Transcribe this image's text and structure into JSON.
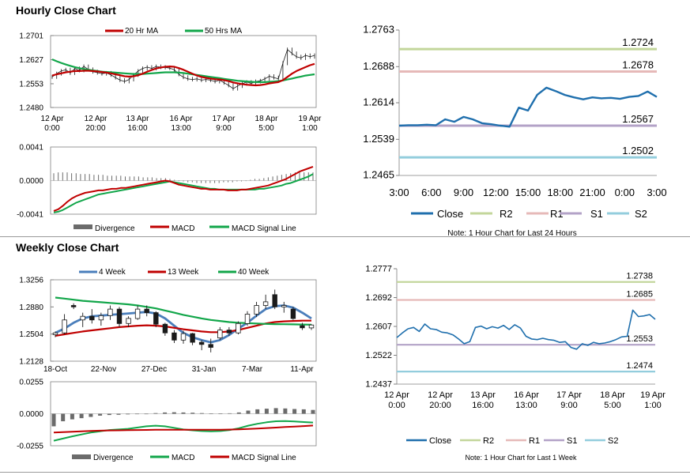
{
  "colors": {
    "ma20": "#c00000",
    "ma50": "#12a64a",
    "ma4": "#4a7ebb",
    "ma13": "#c00000",
    "ma40": "#12a64a",
    "close": "#1f6fad",
    "r2": "#c3d69b",
    "r1": "#e6b9b8",
    "s1": "#b3a2c7",
    "s2": "#93cddd",
    "divergence": "#6b6b6b",
    "macd_red": "#c00000",
    "signal_green": "#12a64a"
  },
  "hourly": {
    "title": "Hourly Close Chart",
    "price": {
      "type": "line",
      "legend": [
        "20 Hr MA",
        "50 Hrs MA"
      ],
      "y_ticks": [
        "1.2701",
        "1.2627",
        "1.2553",
        "1.2480"
      ],
      "y_ticks_num": [
        1.2701,
        1.2627,
        1.2553,
        1.248
      ],
      "ylim": [
        1.248,
        1.2701
      ],
      "x_ticks": [
        {
          "line1": "12 Apr",
          "line2": "0:00"
        },
        {
          "line1": "12 Apr",
          "line2": "20:00"
        },
        {
          "line1": "13 Apr",
          "line2": "16:00"
        },
        {
          "line1": "16 Apr",
          "line2": "13:00"
        },
        {
          "line1": "17 Apr",
          "line2": "9:00"
        },
        {
          "line1": "18 Apr",
          "line2": "5:00"
        },
        {
          "line1": "19 Apr",
          "line2": "1:00"
        }
      ],
      "series": [
        {
          "name": "Price",
          "values": [
            1.2574,
            1.2584,
            1.2592,
            1.2596,
            1.2586,
            1.26,
            1.2594,
            1.2606,
            1.2597,
            1.259,
            1.2587,
            1.2584,
            1.2586,
            1.258,
            1.2572,
            1.2564,
            1.256,
            1.2566,
            1.258,
            1.2592,
            1.26,
            1.2604,
            1.26,
            1.2606,
            1.2604,
            1.2603,
            1.2601,
            1.2596,
            1.2582,
            1.2573,
            1.2568,
            1.2566,
            1.2568,
            1.2564,
            1.2566,
            1.2564,
            1.256,
            1.2564,
            1.2556,
            1.2548,
            1.2538,
            1.2546,
            1.2553,
            1.2558,
            1.2554,
            1.256,
            1.2562,
            1.2568,
            1.2576,
            1.2572,
            1.2568,
            1.2616,
            1.2658,
            1.2646,
            1.2636,
            1.2632,
            1.264,
            1.2636,
            1.264
          ]
        },
        {
          "name": "20 Hr MA",
          "values": [
            1.2578,
            1.2582,
            1.2585,
            1.2588,
            1.259,
            1.2592,
            1.2592,
            1.2593,
            1.2593,
            1.2592,
            1.2591,
            1.2589,
            1.2587,
            1.2585,
            1.2582,
            1.2579,
            1.2576,
            1.2575,
            1.2576,
            1.2579,
            1.2584,
            1.259,
            1.2595,
            1.26,
            1.2603,
            1.2605,
            1.2606,
            1.2605,
            1.2601,
            1.2596,
            1.259,
            1.2584,
            1.2578,
            1.2574,
            1.2571,
            1.2569,
            1.2567,
            1.2566,
            1.2564,
            1.2561,
            1.2557,
            1.2554,
            1.2552,
            1.255,
            1.2549,
            1.2548,
            1.2549,
            1.2551,
            1.2554,
            1.2556,
            1.2558,
            1.2564,
            1.2574,
            1.2584,
            1.2592,
            1.2598,
            1.2604,
            1.261,
            1.2614
          ]
        },
        {
          "name": "50 Hrs MA",
          "values": [
            1.2628,
            1.2622,
            1.2617,
            1.2612,
            1.2608,
            1.2604,
            1.2601,
            1.2598,
            1.2596,
            1.2594,
            1.2592,
            1.259,
            1.2589,
            1.2588,
            1.2587,
            1.2586,
            1.2585,
            1.2584,
            1.2583,
            1.2583,
            1.2583,
            1.2584,
            1.2585,
            1.2586,
            1.2587,
            1.2588,
            1.2588,
            1.2588,
            1.2587,
            1.2586,
            1.2584,
            1.2582,
            1.258,
            1.2578,
            1.2576,
            1.2574,
            1.2572,
            1.257,
            1.2568,
            1.2566,
            1.2564,
            1.2562,
            1.2561,
            1.256,
            1.2559,
            1.2558,
            1.2558,
            1.2558,
            1.2559,
            1.256,
            1.2561,
            1.2563,
            1.2566,
            1.2569,
            1.2572,
            1.2575,
            1.2578,
            1.258,
            1.2582
          ]
        }
      ]
    },
    "macd": {
      "type": "bar+line",
      "legend": [
        "Divergence",
        "MACD",
        "MACD Signal Line"
      ],
      "y_ticks": [
        "0.0041",
        "0.0000",
        "-0.0041"
      ],
      "y_ticks_num": [
        0.0041,
        0.0,
        -0.0041
      ],
      "ylim": [
        -0.0041,
        0.0041
      ],
      "divergence": [
        0.0009,
        0.001,
        0.001,
        0.001,
        0.0009,
        0.0009,
        0.0008,
        0.0008,
        0.0008,
        0.0007,
        0.0007,
        0.0007,
        0.0006,
        0.0006,
        0.0006,
        0.0006,
        0.0005,
        0.0005,
        0.0005,
        0.0005,
        0.0004,
        0.0004,
        0.0004,
        0.0003,
        0.0003,
        0.0003,
        0.0002,
        0.0001,
        0.0,
        -0.0001,
        -0.0002,
        -0.0002,
        -0.0003,
        -0.0003,
        -0.0003,
        -0.0003,
        -0.0003,
        -0.0003,
        -0.0002,
        -0.0002,
        -0.0002,
        -0.0001,
        -0.0001,
        0.0,
        0.0001,
        0.0002,
        0.0002,
        0.0003,
        0.0004,
        0.0005,
        0.0006,
        0.0007,
        0.0008,
        0.0009,
        0.001,
        0.001,
        0.001,
        0.001,
        0.001
      ],
      "macd": [
        -0.0037,
        -0.0035,
        -0.0031,
        -0.0026,
        -0.0022,
        -0.0019,
        -0.0017,
        -0.0015,
        -0.0014,
        -0.0013,
        -0.0012,
        -0.0012,
        -0.0011,
        -0.001,
        -0.001,
        -0.0009,
        -0.0009,
        -0.0008,
        -0.0007,
        -0.0006,
        -0.0005,
        -0.0004,
        -0.0003,
        -0.0002,
        -0.0001,
        0.0,
        -0.0001,
        -0.0003,
        -0.0005,
        -0.0006,
        -0.0007,
        -0.0008,
        -0.0009,
        -0.001,
        -0.001,
        -0.0011,
        -0.0011,
        -0.0011,
        -0.0011,
        -0.0012,
        -0.0012,
        -0.0012,
        -0.0011,
        -0.0011,
        -0.001,
        -0.0009,
        -0.0008,
        -0.0007,
        -0.0006,
        -0.0004,
        -0.0002,
        0.0,
        0.0002,
        0.0005,
        0.0008,
        0.0011,
        0.0013,
        0.0015,
        0.0017
      ],
      "signal": [
        -0.0039,
        -0.0038,
        -0.0036,
        -0.0033,
        -0.003,
        -0.0027,
        -0.0025,
        -0.0023,
        -0.0021,
        -0.0019,
        -0.0017,
        -0.0016,
        -0.0015,
        -0.0014,
        -0.0013,
        -0.0012,
        -0.0011,
        -0.001,
        -0.0009,
        -0.0008,
        -0.0007,
        -0.0006,
        -0.0005,
        -0.0004,
        -0.0003,
        -0.0002,
        -0.0001,
        -0.0002,
        -0.0003,
        -0.0004,
        -0.0005,
        -0.0006,
        -0.0007,
        -0.0008,
        -0.0009,
        -0.001,
        -0.001,
        -0.0011,
        -0.0011,
        -0.0011,
        -0.0011,
        -0.0011,
        -0.0011,
        -0.0011,
        -0.0011,
        -0.0011,
        -0.001,
        -0.001,
        -0.0009,
        -0.0008,
        -0.0007,
        -0.0006,
        -0.0004,
        -0.0003,
        -0.0001,
        0.0001,
        0.0003,
        0.0005,
        0.0008
      ]
    },
    "pivot": {
      "type": "line",
      "y_ticks": [
        "1.2763",
        "1.2688",
        "1.2614",
        "1.2539",
        "1.2465"
      ],
      "y_ticks_num": [
        1.2763,
        1.2688,
        1.2614,
        1.2539,
        1.2465
      ],
      "ylim": [
        1.2465,
        1.2763
      ],
      "x_ticks": [
        "3:00",
        "6:00",
        "9:00",
        "12:00",
        "15:00",
        "18:00",
        "21:00",
        "0:00",
        "3:00"
      ],
      "close": [
        1.2567,
        1.2568,
        1.2568,
        1.2569,
        1.2568,
        1.258,
        1.2575,
        1.2585,
        1.258,
        1.2572,
        1.257,
        1.2567,
        1.2565,
        1.2604,
        1.2598,
        1.263,
        1.2645,
        1.2638,
        1.263,
        1.2625,
        1.2621,
        1.2625,
        1.2623,
        1.2624,
        1.2622,
        1.2626,
        1.2628,
        1.2637,
        1.2626
      ],
      "levels": [
        {
          "name": "R2",
          "value": 1.2724,
          "label": "1.2724"
        },
        {
          "name": "R1",
          "value": 1.2678,
          "label": "1.2678"
        },
        {
          "name": "S1",
          "value": 1.2567,
          "label": "1.2567"
        },
        {
          "name": "S2",
          "value": 1.2502,
          "label": "1.2502"
        }
      ],
      "legend": [
        "Close",
        "R2",
        "R1",
        "S1",
        "S2"
      ],
      "note": "Note: 1 Hour Chart for Last 24 Hours"
    }
  },
  "weekly": {
    "title": "Weekly Close Chart",
    "price": {
      "type": "candlestick+line",
      "legend": [
        "4 Week",
        "13 Week",
        "40 Week"
      ],
      "y_ticks": [
        "1.3256",
        "1.2880",
        "1.2504",
        "1.2128"
      ],
      "y_ticks_num": [
        1.3256,
        1.288,
        1.2504,
        1.2128
      ],
      "ylim": [
        1.2128,
        1.3256
      ],
      "x_ticks": [
        "18-Oct",
        "22-Nov",
        "27-Dec",
        "31-Jan",
        "7-Mar",
        "11-Apr"
      ],
      "candles": [
        {
          "o": 1.2495,
          "h": 1.254,
          "l": 1.246,
          "c": 1.252
        },
        {
          "o": 1.252,
          "h": 1.278,
          "l": 1.25,
          "c": 1.27
        },
        {
          "o": 1.29,
          "h": 1.293,
          "l": 1.285,
          "c": 1.288
        },
        {
          "o": 1.27,
          "h": 1.28,
          "l": 1.26,
          "c": 1.275
        },
        {
          "o": 1.275,
          "h": 1.285,
          "l": 1.265,
          "c": 1.27
        },
        {
          "o": 1.27,
          "h": 1.28,
          "l": 1.262,
          "c": 1.276
        },
        {
          "o": 1.276,
          "h": 1.29,
          "l": 1.27,
          "c": 1.285
        },
        {
          "o": 1.285,
          "h": 1.288,
          "l": 1.26,
          "c": 1.265
        },
        {
          "o": 1.265,
          "h": 1.275,
          "l": 1.26,
          "c": 1.272
        },
        {
          "o": 1.272,
          "h": 1.29,
          "l": 1.27,
          "c": 1.285
        },
        {
          "o": 1.285,
          "h": 1.29,
          "l": 1.275,
          "c": 1.28
        },
        {
          "o": 1.28,
          "h": 1.282,
          "l": 1.26,
          "c": 1.264
        },
        {
          "o": 1.264,
          "h": 1.266,
          "l": 1.248,
          "c": 1.252
        },
        {
          "o": 1.252,
          "h": 1.256,
          "l": 1.238,
          "c": 1.242
        },
        {
          "o": 1.242,
          "h": 1.255,
          "l": 1.237,
          "c": 1.251
        },
        {
          "o": 1.251,
          "h": 1.252,
          "l": 1.235,
          "c": 1.239
        },
        {
          "o": 1.239,
          "h": 1.242,
          "l": 1.228,
          "c": 1.236
        },
        {
          "o": 1.236,
          "h": 1.244,
          "l": 1.225,
          "c": 1.232
        },
        {
          "o": 1.245,
          "h": 1.26,
          "l": 1.242,
          "c": 1.256
        },
        {
          "o": 1.256,
          "h": 1.26,
          "l": 1.248,
          "c": 1.252
        },
        {
          "o": 1.252,
          "h": 1.268,
          "l": 1.25,
          "c": 1.265
        },
        {
          "o": 1.265,
          "h": 1.282,
          "l": 1.262,
          "c": 1.278
        },
        {
          "o": 1.278,
          "h": 1.295,
          "l": 1.274,
          "c": 1.29
        },
        {
          "o": 1.29,
          "h": 1.305,
          "l": 1.285,
          "c": 1.295
        },
        {
          "o": 1.305,
          "h": 1.312,
          "l": 1.285,
          "c": 1.288
        },
        {
          "o": 1.288,
          "h": 1.295,
          "l": 1.28,
          "c": 1.29
        },
        {
          "o": 1.285,
          "h": 1.288,
          "l": 1.27,
          "c": 1.272
        },
        {
          "o": 1.262,
          "h": 1.266,
          "l": 1.256,
          "c": 1.259
        },
        {
          "o": 1.259,
          "h": 1.264,
          "l": 1.256,
          "c": 1.263
        }
      ],
      "series": [
        {
          "name": "4 Week",
          "values": [
            1.252,
            1.258,
            1.266,
            1.272,
            1.275,
            1.276,
            1.277,
            1.278,
            1.279,
            1.28,
            1.281,
            1.279,
            1.272,
            1.262,
            1.252,
            1.246,
            1.242,
            1.239,
            1.242,
            1.249,
            1.258,
            1.266,
            1.276,
            1.285,
            1.289,
            1.29,
            1.287,
            1.28,
            1.272
          ]
        },
        {
          "name": "13 Week",
          "values": [
            1.248,
            1.25,
            1.252,
            1.254,
            1.2555,
            1.257,
            1.2585,
            1.26,
            1.261,
            1.262,
            1.2625,
            1.262,
            1.261,
            1.259,
            1.257,
            1.2555,
            1.254,
            1.253,
            1.253,
            1.254,
            1.256,
            1.259,
            1.262,
            1.265,
            1.267,
            1.268,
            1.2685,
            1.269,
            1.269
          ]
        },
        {
          "name": "40 Week",
          "values": [
            1.301,
            1.2995,
            1.298,
            1.2965,
            1.2955,
            1.2945,
            1.2935,
            1.2925,
            1.2915,
            1.29,
            1.288,
            1.286,
            1.283,
            1.28,
            1.277,
            1.2745,
            1.272,
            1.27,
            1.2685,
            1.267,
            1.266,
            1.2655,
            1.265,
            1.2645,
            1.2642,
            1.264,
            1.2638,
            1.2636,
            1.2634
          ]
        }
      ]
    },
    "macd": {
      "type": "bar+line",
      "legend": [
        "Divergence",
        "MACD",
        "MACD Signal Line"
      ],
      "y_ticks": [
        "0.0255",
        "0.0000",
        "-0.0255"
      ],
      "y_ticks_num": [
        0.0255,
        0.0,
        -0.0255
      ],
      "ylim": [
        -0.0255,
        0.0255
      ],
      "divergence": [
        -0.01,
        -0.006,
        -0.0045,
        -0.0035,
        -0.0025,
        -0.0015,
        -0.001,
        -0.0008,
        -0.0005,
        -0.0003,
        0.0,
        0.0005,
        0.001,
        0.0012,
        0.001,
        0.0008,
        0.0005,
        0.0003,
        0.0002,
        0.0004,
        0.001,
        0.0025,
        0.0035,
        0.004,
        0.0045,
        0.0042,
        0.0038,
        0.0035,
        0.003
      ],
      "macd": [
        -0.0215,
        -0.0198,
        -0.018,
        -0.0165,
        -0.015,
        -0.014,
        -0.013,
        -0.0125,
        -0.012,
        -0.011,
        -0.01,
        -0.0095,
        -0.01,
        -0.0112,
        -0.0125,
        -0.0132,
        -0.0138,
        -0.014,
        -0.0138,
        -0.013,
        -0.0115,
        -0.0095,
        -0.008,
        -0.0068,
        -0.006,
        -0.0058,
        -0.0062,
        -0.0066,
        -0.007
      ],
      "signal": [
        -0.015,
        -0.0146,
        -0.0143,
        -0.014,
        -0.0137,
        -0.0135,
        -0.0133,
        -0.0132,
        -0.0131,
        -0.013,
        -0.0129,
        -0.0128,
        -0.0128,
        -0.0128,
        -0.0128,
        -0.0128,
        -0.0128,
        -0.0128,
        -0.0127,
        -0.0126,
        -0.0124,
        -0.0121,
        -0.0118,
        -0.0114,
        -0.011,
        -0.0106,
        -0.0102,
        -0.0098,
        -0.0094
      ]
    },
    "pivot": {
      "type": "line",
      "y_ticks": [
        "1.2777",
        "1.2692",
        "1.2607",
        "1.2522",
        "1.2437"
      ],
      "y_ticks_num": [
        1.2777,
        1.2692,
        1.2607,
        1.2522,
        1.2437
      ],
      "ylim": [
        1.2437,
        1.2777
      ],
      "x_ticks": [
        {
          "line1": "12 Apr",
          "line2": "0:00"
        },
        {
          "line1": "12 Apr",
          "line2": "20:00"
        },
        {
          "line1": "13 Apr",
          "line2": "16:00"
        },
        {
          "line1": "16 Apr",
          "line2": "13:00"
        },
        {
          "line1": "17 Apr",
          "line2": "9:00"
        },
        {
          "line1": "18 Apr",
          "line2": "5:00"
        },
        {
          "line1": "19 Apr",
          "line2": "1:00"
        }
      ],
      "close": [
        1.2574,
        1.2588,
        1.26,
        1.2604,
        1.2592,
        1.2614,
        1.26,
        1.2598,
        1.259,
        1.2588,
        1.2582,
        1.257,
        1.2556,
        1.2562,
        1.2604,
        1.2608,
        1.26,
        1.2606,
        1.2602,
        1.261,
        1.2598,
        1.2612,
        1.2602,
        1.2578,
        1.257,
        1.2568,
        1.2572,
        1.2568,
        1.2566,
        1.256,
        1.2562,
        1.2545,
        1.254,
        1.2556,
        1.2551,
        1.256,
        1.2556,
        1.2558,
        1.2562,
        1.2568,
        1.2576,
        1.2578,
        1.2655,
        1.2636,
        1.2638,
        1.2642,
        1.2628
      ],
      "levels": [
        {
          "name": "R2",
          "value": 1.2738,
          "label": "1.2738"
        },
        {
          "name": "R1",
          "value": 1.2685,
          "label": "1.2685"
        },
        {
          "name": "S1",
          "value": 1.2553,
          "label": "1.2553"
        },
        {
          "name": "S2",
          "value": 1.2474,
          "label": "1.2474"
        }
      ],
      "legend": [
        "Close",
        "R2",
        "R1",
        "S1",
        "S2"
      ],
      "note": "Note: 1 Hour Chart for  Last 1 Week"
    }
  }
}
